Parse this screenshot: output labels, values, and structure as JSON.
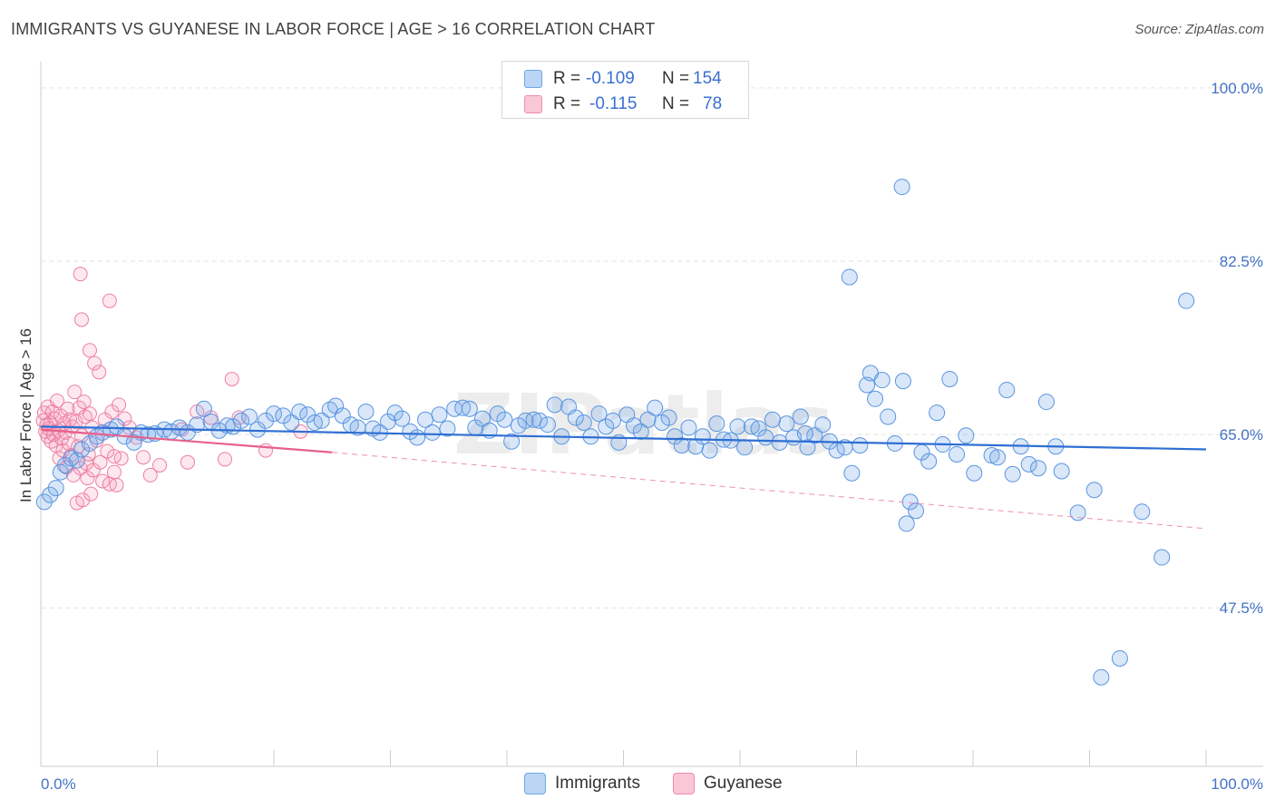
{
  "title": "IMMIGRANTS VS GUYANESE IN LABOR FORCE | AGE > 16 CORRELATION CHART",
  "source": "Source: ZipAtlas.com",
  "watermark": "ZIPatlas",
  "legend": {
    "rows": [
      {
        "r_label": "R =",
        "r_value": "-0.109",
        "n_label": "N =",
        "n_value": "154",
        "color": "#6fa8e8"
      },
      {
        "r_label": "R =",
        "r_value": "-0.115",
        "n_label": "N =",
        "n_value": "78",
        "color": "#f28bab"
      }
    ]
  },
  "bottom_legend": [
    {
      "label": "Immigrants",
      "color": "#6fa8e8"
    },
    {
      "label": "Guyanese",
      "color": "#f28bab"
    }
  ],
  "chart_data": {
    "type": "scatter",
    "title": "IMMIGRANTS VS GUYANESE IN LABOR FORCE | AGE > 16 CORRELATION CHART",
    "xlabel": "",
    "ylabel": "In Labor Force | Age > 16",
    "xlim": [
      0,
      100
    ],
    "ylim": [
      31.5,
      102
    ],
    "y_ticks": [
      47.5,
      65.0,
      82.5,
      100.0
    ],
    "y_tick_labels": [
      "47.5%",
      "65.0%",
      "82.5%",
      "100.0%"
    ],
    "x_tick_labels": [
      "0.0%",
      "100.0%"
    ],
    "series": [
      {
        "name": "Immigrants",
        "color": "#6fa8e8",
        "trend": {
          "x": [
            0,
            100
          ],
          "y": [
            65.8,
            63.5
          ],
          "dashed_after": null
        },
        "points": [
          [
            0.3,
            58.2
          ],
          [
            0.8,
            58.9
          ],
          [
            1.3,
            59.6
          ],
          [
            1.7,
            61.2
          ],
          [
            2.1,
            61.9
          ],
          [
            2.6,
            62.6
          ],
          [
            3.1,
            62.4
          ],
          [
            3.5,
            63.5
          ],
          [
            4.2,
            64.1
          ],
          [
            4.8,
            64.8
          ],
          [
            5.3,
            65.2
          ],
          [
            6.0,
            65.5
          ],
          [
            6.5,
            65.8
          ],
          [
            7.2,
            64.8
          ],
          [
            8.0,
            64.2
          ],
          [
            8.6,
            65.2
          ],
          [
            9.2,
            65.0
          ],
          [
            9.8,
            65.1
          ],
          [
            10.6,
            65.5
          ],
          [
            11.2,
            65.3
          ],
          [
            11.9,
            65.7
          ],
          [
            12.6,
            65.2
          ],
          [
            13.4,
            66.0
          ],
          [
            14.0,
            67.6
          ],
          [
            14.6,
            66.3
          ],
          [
            15.3,
            65.4
          ],
          [
            16.0,
            65.9
          ],
          [
            16.5,
            65.8
          ],
          [
            17.2,
            66.4
          ],
          [
            17.9,
            66.8
          ],
          [
            18.6,
            65.5
          ],
          [
            19.3,
            66.4
          ],
          [
            20.0,
            67.1
          ],
          [
            20.8,
            66.9
          ],
          [
            21.5,
            66.2
          ],
          [
            22.2,
            67.3
          ],
          [
            22.9,
            67.0
          ],
          [
            23.5,
            66.2
          ],
          [
            24.1,
            66.4
          ],
          [
            24.8,
            67.5
          ],
          [
            25.3,
            67.9
          ],
          [
            25.9,
            66.9
          ],
          [
            26.6,
            66.0
          ],
          [
            27.2,
            65.7
          ],
          [
            27.9,
            67.3
          ],
          [
            28.5,
            65.6
          ],
          [
            29.1,
            65.2
          ],
          [
            29.8,
            66.3
          ],
          [
            30.4,
            67.2
          ],
          [
            31.0,
            66.6
          ],
          [
            31.7,
            65.3
          ],
          [
            32.3,
            64.7
          ],
          [
            33.0,
            66.5
          ],
          [
            33.6,
            65.2
          ],
          [
            34.2,
            67.0
          ],
          [
            34.9,
            65.6
          ],
          [
            35.5,
            67.6
          ],
          [
            36.2,
            67.7
          ],
          [
            36.8,
            67.6
          ],
          [
            37.3,
            65.7
          ],
          [
            37.9,
            66.6
          ],
          [
            38.5,
            65.4
          ],
          [
            39.2,
            67.1
          ],
          [
            39.8,
            66.5
          ],
          [
            40.4,
            64.3
          ],
          [
            41.0,
            65.9
          ],
          [
            41.6,
            66.4
          ],
          [
            42.3,
            66.5
          ],
          [
            42.8,
            66.4
          ],
          [
            43.5,
            66.0
          ],
          [
            44.1,
            68.0
          ],
          [
            44.7,
            64.8
          ],
          [
            45.3,
            67.8
          ],
          [
            45.9,
            66.7
          ],
          [
            46.6,
            66.2
          ],
          [
            47.2,
            64.8
          ],
          [
            47.9,
            67.1
          ],
          [
            48.5,
            65.8
          ],
          [
            49.1,
            66.4
          ],
          [
            49.6,
            64.2
          ],
          [
            50.3,
            67.0
          ],
          [
            50.9,
            65.9
          ],
          [
            51.5,
            65.3
          ],
          [
            52.1,
            66.5
          ],
          [
            52.7,
            67.7
          ],
          [
            53.3,
            66.2
          ],
          [
            53.9,
            66.7
          ],
          [
            54.4,
            64.8
          ],
          [
            55.0,
            63.9
          ],
          [
            55.6,
            65.7
          ],
          [
            56.2,
            63.8
          ],
          [
            56.8,
            64.8
          ],
          [
            57.4,
            63.4
          ],
          [
            58.0,
            66.1
          ],
          [
            58.6,
            64.5
          ],
          [
            59.2,
            64.4
          ],
          [
            59.8,
            65.8
          ],
          [
            60.4,
            63.7
          ],
          [
            61.0,
            65.8
          ],
          [
            61.6,
            65.6
          ],
          [
            62.2,
            64.7
          ],
          [
            62.8,
            66.5
          ],
          [
            63.4,
            64.2
          ],
          [
            64.0,
            66.1
          ],
          [
            64.6,
            64.7
          ],
          [
            65.2,
            66.8
          ],
          [
            65.8,
            63.7
          ],
          [
            66.4,
            64.9
          ],
          [
            67.1,
            66.0
          ],
          [
            67.7,
            64.3
          ],
          [
            68.3,
            63.4
          ],
          [
            69.0,
            63.7
          ],
          [
            69.6,
            61.1
          ],
          [
            70.3,
            63.9
          ],
          [
            70.9,
            70.0
          ],
          [
            71.6,
            68.6
          ],
          [
            72.2,
            70.5
          ],
          [
            72.7,
            66.8
          ],
          [
            73.3,
            64.1
          ],
          [
            74.0,
            70.4
          ],
          [
            74.6,
            58.2
          ],
          [
            75.1,
            57.3
          ],
          [
            75.6,
            63.2
          ],
          [
            76.2,
            62.3
          ],
          [
            76.9,
            67.2
          ],
          [
            77.4,
            64.0
          ],
          [
            78.0,
            70.6
          ],
          [
            78.6,
            63.0
          ],
          [
            79.4,
            64.9
          ],
          [
            80.1,
            61.1
          ],
          [
            81.6,
            62.9
          ],
          [
            82.1,
            62.7
          ],
          [
            82.9,
            69.5
          ],
          [
            83.4,
            61.0
          ],
          [
            84.1,
            63.8
          ],
          [
            84.8,
            62.0
          ],
          [
            85.6,
            61.6
          ],
          [
            86.3,
            68.3
          ],
          [
            87.1,
            63.8
          ],
          [
            87.6,
            61.3
          ],
          [
            89.0,
            57.1
          ],
          [
            90.4,
            59.4
          ],
          [
            91.0,
            40.5
          ],
          [
            92.6,
            42.4
          ],
          [
            94.5,
            57.2
          ],
          [
            96.2,
            52.6
          ],
          [
            98.3,
            78.5
          ],
          [
            69.4,
            80.9
          ],
          [
            73.9,
            90.0
          ],
          [
            71.2,
            71.2
          ],
          [
            74.3,
            56.0
          ],
          [
            65.6,
            65.1
          ]
        ]
      },
      {
        "name": "Guyanese",
        "color": "#f28bab",
        "trend": {
          "x": [
            0,
            25,
            100
          ],
          "y": [
            65.5,
            63.2,
            55.5
          ],
          "dashed_after": 25
        },
        "points": [
          [
            0.2,
            66.4
          ],
          [
            0.3,
            67.2
          ],
          [
            0.4,
            65.3
          ],
          [
            0.5,
            66.0
          ],
          [
            0.6,
            64.8
          ],
          [
            0.6,
            67.8
          ],
          [
            0.7,
            65.6
          ],
          [
            0.8,
            66.2
          ],
          [
            0.9,
            64.3
          ],
          [
            1.0,
            67.3
          ],
          [
            1.1,
            65.0
          ],
          [
            1.2,
            66.6
          ],
          [
            1.3,
            63.9
          ],
          [
            1.4,
            68.4
          ],
          [
            1.5,
            65.4
          ],
          [
            1.6,
            62.6
          ],
          [
            1.7,
            66.9
          ],
          [
            1.8,
            64.6
          ],
          [
            1.9,
            63.4
          ],
          [
            2.0,
            66.1
          ],
          [
            2.1,
            65.2
          ],
          [
            2.2,
            61.7
          ],
          [
            2.3,
            67.6
          ],
          [
            2.4,
            64.1
          ],
          [
            2.5,
            66.5
          ],
          [
            2.6,
            62.9
          ],
          [
            2.7,
            65.8
          ],
          [
            2.8,
            60.9
          ],
          [
            2.9,
            69.3
          ],
          [
            3.0,
            66.3
          ],
          [
            3.1,
            58.1
          ],
          [
            3.2,
            63.8
          ],
          [
            3.3,
            67.7
          ],
          [
            3.4,
            61.6
          ],
          [
            3.5,
            64.9
          ],
          [
            3.6,
            58.4
          ],
          [
            3.7,
            68.3
          ],
          [
            3.8,
            66.8
          ],
          [
            3.9,
            62.1
          ],
          [
            4.0,
            60.6
          ],
          [
            4.1,
            63.0
          ],
          [
            4.2,
            67.1
          ],
          [
            4.3,
            59.0
          ],
          [
            4.4,
            65.7
          ],
          [
            4.5,
            61.4
          ],
          [
            4.6,
            72.2
          ],
          [
            4.8,
            64.4
          ],
          [
            5.0,
            71.3
          ],
          [
            5.1,
            62.2
          ],
          [
            5.3,
            60.3
          ],
          [
            5.5,
            66.5
          ],
          [
            5.7,
            63.3
          ],
          [
            5.9,
            60.0
          ],
          [
            6.1,
            67.3
          ],
          [
            6.3,
            61.2
          ],
          [
            6.5,
            59.9
          ],
          [
            6.7,
            68.0
          ],
          [
            6.9,
            62.6
          ],
          [
            3.5,
            76.6
          ],
          [
            3.4,
            81.2
          ],
          [
            4.2,
            73.5
          ],
          [
            5.9,
            78.5
          ],
          [
            7.2,
            66.6
          ],
          [
            7.6,
            65.7
          ],
          [
            8.2,
            64.7
          ],
          [
            8.8,
            62.7
          ],
          [
            9.4,
            60.9
          ],
          [
            10.2,
            61.9
          ],
          [
            12.1,
            65.5
          ],
          [
            12.6,
            62.2
          ],
          [
            13.4,
            67.3
          ],
          [
            14.6,
            66.7
          ],
          [
            15.8,
            62.5
          ],
          [
            17.0,
            66.7
          ],
          [
            19.3,
            63.4
          ],
          [
            22.3,
            65.3
          ],
          [
            16.4,
            70.6
          ],
          [
            6.3,
            62.8
          ]
        ]
      }
    ]
  }
}
